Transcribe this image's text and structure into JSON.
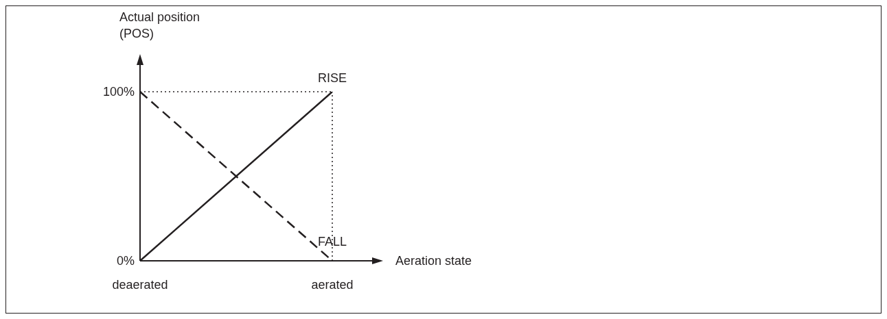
{
  "chart_data": {
    "type": "line",
    "ylabel": "Actual position (POS)",
    "xlabel": "Aeration state",
    "categories": [
      "deaerated",
      "aerated"
    ],
    "series": [
      {
        "name": "RISE",
        "color": "#231f20",
        "values": [
          0,
          100
        ],
        "line_style": "solid"
      },
      {
        "name": "FALL",
        "color": "#231f20",
        "values": [
          100,
          0
        ],
        "line_style": "dashed"
      }
    ],
    "ylim": [
      0,
      100
    ],
    "yticks": [
      {
        "value": 0,
        "label": "0%"
      },
      {
        "value": 100,
        "label": "100%"
      }
    ],
    "ref_lines": [
      {
        "axis": "y",
        "value": 100,
        "line_style": "dotted",
        "color": "#231f20"
      },
      {
        "axis": "x",
        "value": "aerated",
        "line_style": "dotted",
        "color": "#231f20"
      }
    ],
    "grid": false,
    "legend": false,
    "marker": "none"
  }
}
